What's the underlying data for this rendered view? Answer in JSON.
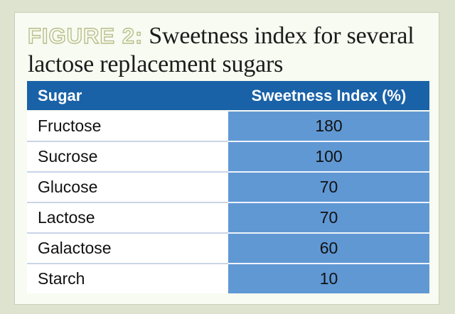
{
  "figure": {
    "label": "FIGURE 2:",
    "title_line1": "Sweetness index for several",
    "title_line2": "lactose replacement sugars"
  },
  "table": {
    "headers": [
      "Sugar",
      "Sweetness Index (%)"
    ],
    "rows": [
      {
        "sugar": "Fructose",
        "index": "180"
      },
      {
        "sugar": "Sucrose",
        "index": "100"
      },
      {
        "sugar": "Glucose",
        "index": "70"
      },
      {
        "sugar": "Lactose",
        "index": "70"
      },
      {
        "sugar": "Galactose",
        "index": "60"
      },
      {
        "sugar": "Starch",
        "index": "10"
      }
    ]
  },
  "colors": {
    "background": "#dde3cf",
    "card": "#f8fbf1",
    "header": "#1a62a8",
    "value_column": "#6098d4",
    "figure_label": "#b8be8a"
  }
}
